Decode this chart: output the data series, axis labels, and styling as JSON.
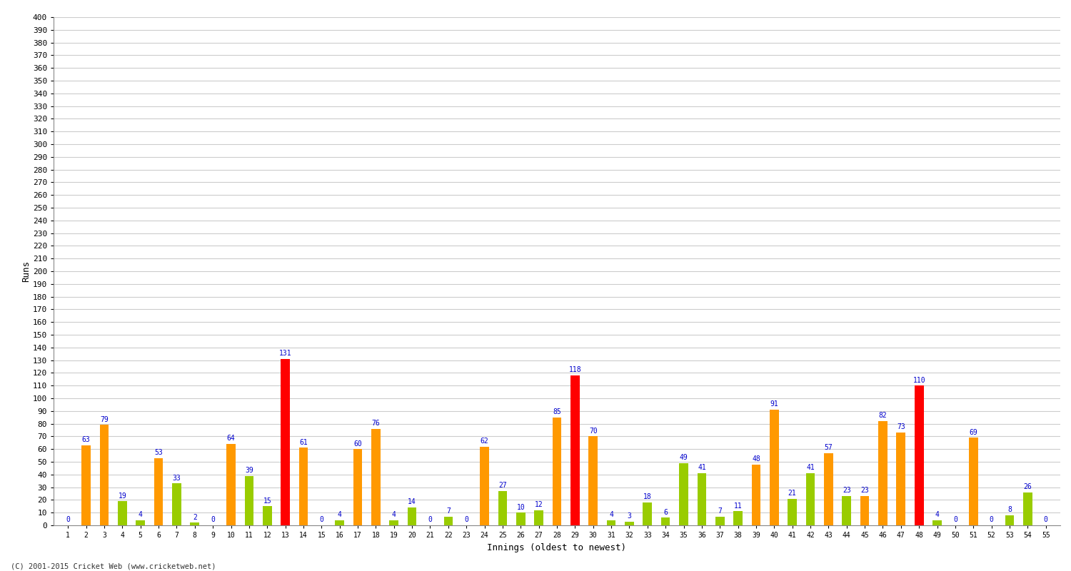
{
  "title": "",
  "xlabel": "Innings (oldest to newest)",
  "ylabel": "Runs",
  "innings": [
    1,
    2,
    3,
    4,
    5,
    6,
    7,
    8,
    9,
    10,
    11,
    12,
    13,
    14,
    15,
    16,
    17,
    18,
    19,
    20,
    21,
    22,
    23,
    24,
    25,
    26,
    27,
    28,
    29,
    30,
    31,
    32,
    33,
    34,
    35,
    36,
    37,
    38,
    39,
    40,
    41,
    42,
    43,
    44,
    45,
    46,
    47,
    48,
    49,
    50,
    51,
    52,
    53,
    54,
    55
  ],
  "values": [
    0,
    63,
    79,
    19,
    4,
    53,
    33,
    2,
    0,
    64,
    39,
    15,
    131,
    61,
    0,
    4,
    60,
    76,
    4,
    14,
    0,
    7,
    0,
    62,
    27,
    10,
    12,
    85,
    118,
    70,
    4,
    3,
    18,
    6,
    49,
    41,
    7,
    11,
    48,
    91,
    21,
    41,
    57,
    23,
    23,
    82,
    73,
    110,
    4,
    0,
    69,
    0,
    8,
    26,
    0
  ],
  "colors": [
    "#99cc00",
    "#ff9900",
    "#ff9900",
    "#99cc00",
    "#99cc00",
    "#ff9900",
    "#99cc00",
    "#99cc00",
    "#99cc00",
    "#ff9900",
    "#99cc00",
    "#99cc00",
    "#ff0000",
    "#ff9900",
    "#99cc00",
    "#99cc00",
    "#ff9900",
    "#ff9900",
    "#99cc00",
    "#99cc00",
    "#99cc00",
    "#99cc00",
    "#99cc00",
    "#ff9900",
    "#99cc00",
    "#99cc00",
    "#99cc00",
    "#ff9900",
    "#ff0000",
    "#ff9900",
    "#99cc00",
    "#99cc00",
    "#99cc00",
    "#99cc00",
    "#99cc00",
    "#99cc00",
    "#99cc00",
    "#99cc00",
    "#ff9900",
    "#ff9900",
    "#99cc00",
    "#99cc00",
    "#ff9900",
    "#99cc00",
    "#ff9900",
    "#ff9900",
    "#ff9900",
    "#ff0000",
    "#99cc00",
    "#99cc00",
    "#ff9900",
    "#99cc00",
    "#99cc00",
    "#99cc00",
    "#99cc00"
  ],
  "ylim": [
    0,
    400
  ],
  "bg_color": "#ffffff",
  "grid_color": "#cccccc",
  "label_color": "#0000cc",
  "label_fontsize": 7,
  "bar_width": 0.5,
  "footer": "(C) 2001-2015 Cricket Web (www.cricketweb.net)"
}
